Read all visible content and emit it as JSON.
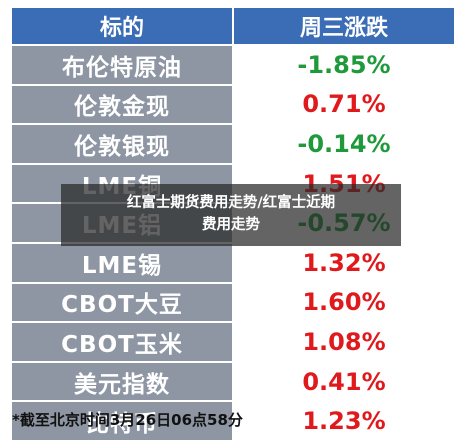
{
  "table": {
    "header_name": "标的",
    "header_change": "周三涨跌",
    "rows": [
      {
        "name": "布伦特原油",
        "change": "-1.85%",
        "dir": "neg"
      },
      {
        "name": "伦敦金现",
        "change": "0.71%",
        "dir": "pos"
      },
      {
        "name": "伦敦银现",
        "change": "-0.14%",
        "dir": "neg"
      },
      {
        "name": "LME铜",
        "change": "1.51%",
        "dir": "pos"
      },
      {
        "name": "LME铝",
        "change": "-0.57%",
        "dir": "neg"
      },
      {
        "name": "LME锡",
        "change": "1.32%",
        "dir": "pos"
      },
      {
        "name": "CBOT大豆",
        "change": "1.60%",
        "dir": "pos"
      },
      {
        "name": "CBOT玉米",
        "change": "1.08%",
        "dir": "pos"
      },
      {
        "name": "美元指数",
        "change": "0.41%",
        "dir": "pos"
      },
      {
        "name": "比特币",
        "change": "1.23%",
        "dir": "pos"
      }
    ]
  },
  "footnote": "*截至北京时间3月26日06点58分",
  "banner": {
    "line1": "红富士期货费用走势/红富士近期",
    "line2": "费用走势"
  },
  "colors": {
    "header": "#3a6db5",
    "name_cell": "#8e96a3",
    "up": "#e0191c",
    "down": "#1f9a3b"
  }
}
